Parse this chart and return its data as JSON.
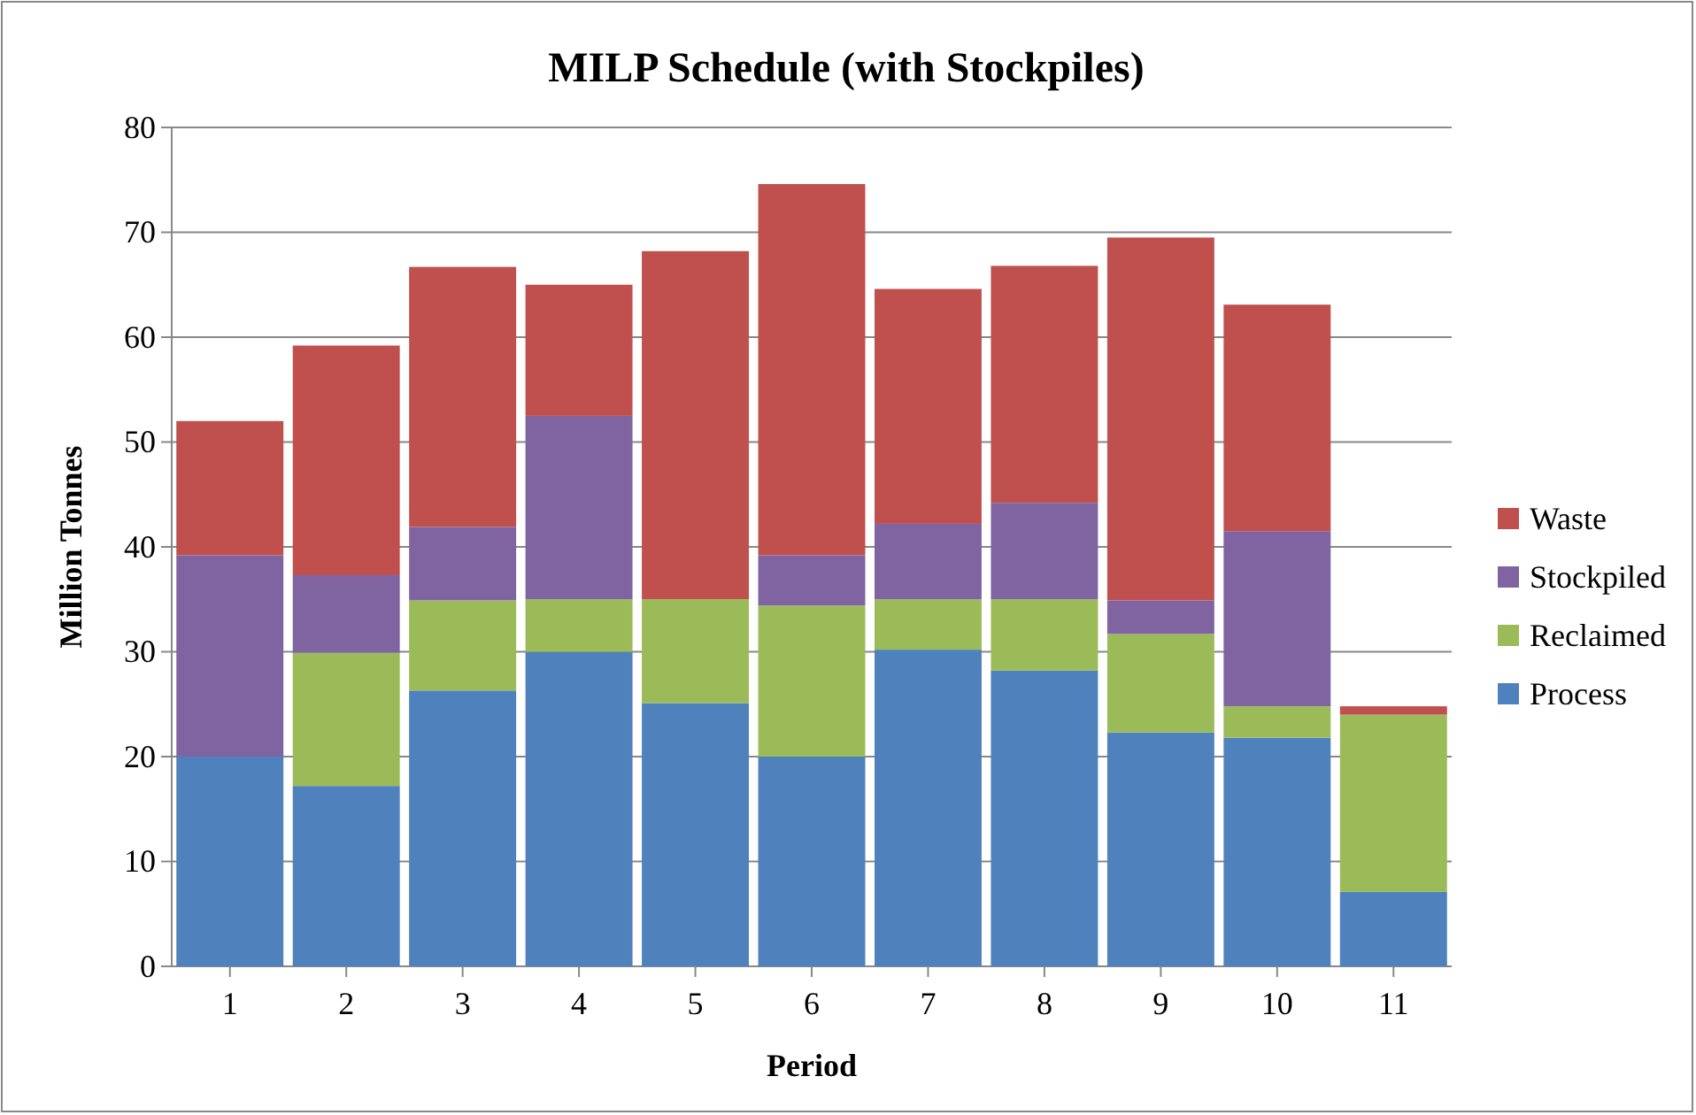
{
  "chart_data": {
    "type": "bar",
    "title": "MILP Schedule (with Stockpiles)",
    "xlabel": "Period",
    "ylabel": "Million Tonnes",
    "categories": [
      "1",
      "2",
      "3",
      "4",
      "5",
      "6",
      "7",
      "8",
      "9",
      "10",
      "11"
    ],
    "stacked": true,
    "series": [
      {
        "name": "Process",
        "color": "#4f81bd",
        "values": [
          20,
          17.2,
          26.3,
          30,
          25.1,
          20,
          30.2,
          28.2,
          22.3,
          21.8,
          7.1
        ]
      },
      {
        "name": "Reclaimed",
        "color": "#9bbb59",
        "values": [
          0,
          12.7,
          8.6,
          5,
          9.9,
          14.4,
          4.8,
          6.8,
          9.4,
          3,
          16.9
        ]
      },
      {
        "name": "Stockpiled",
        "color": "#8064a2",
        "values": [
          19.2,
          7.4,
          7,
          17.5,
          0,
          4.8,
          7.2,
          9.2,
          3.2,
          16.7,
          0
        ]
      },
      {
        "name": "Waste",
        "color": "#c0504d",
        "values": [
          12.8,
          21.9,
          24.8,
          12.5,
          33.2,
          35.4,
          22.4,
          22.6,
          34.6,
          21.6,
          0.8
        ]
      }
    ],
    "ylim": [
      0,
      80
    ],
    "yticks": [
      0,
      10,
      20,
      30,
      40,
      50,
      60,
      70,
      80
    ],
    "grid": "y",
    "legend": "right"
  }
}
